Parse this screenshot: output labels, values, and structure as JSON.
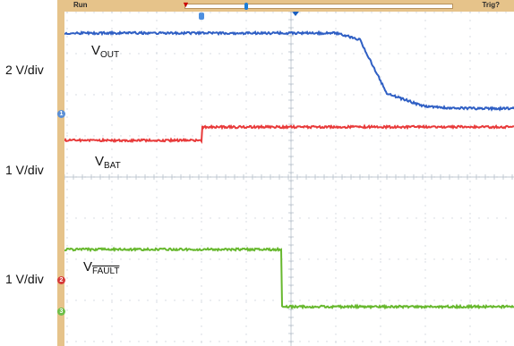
{
  "topbar": {
    "run_label": "Run",
    "trig_label": "Trig?"
  },
  "markers": {
    "ch1": "1",
    "ch2": "2",
    "ch3": "3",
    "start": "T"
  },
  "scale_labels": {
    "vout": "2 V/div",
    "vbat": "1 V/div",
    "vfault": "1 V/div"
  },
  "traces": {
    "vout": {
      "main": "V",
      "sub": "OUT",
      "color": "#2f5fc4"
    },
    "vbat": {
      "main": "V",
      "sub": "BAT",
      "color": "#e83a3a"
    },
    "vfault": {
      "main": "V",
      "sub": "FAULT",
      "color": "#67b82e"
    }
  }
}
